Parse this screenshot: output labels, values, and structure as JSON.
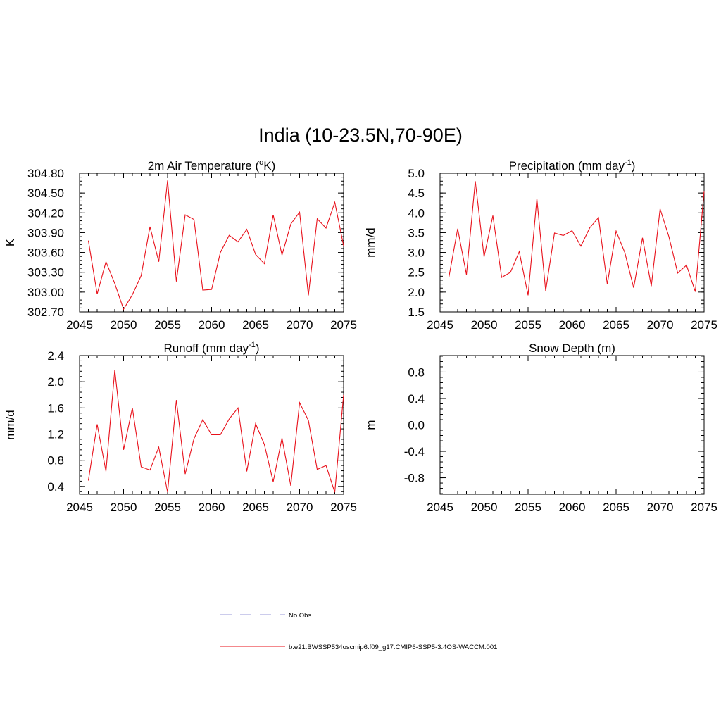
{
  "figure": {
    "title": "India (10-23.5N,70-90E)"
  },
  "chart_data": [
    {
      "type": "line",
      "title": "2m Air Temperature (",
      "title_super": "o",
      "title_after": "K)",
      "ylabel": "K",
      "xlabel": "",
      "xlim": [
        2045,
        2075
      ],
      "ylim": [
        302.7,
        304.8
      ],
      "xticks": [
        "2045",
        "2050",
        "2055",
        "2060",
        "2065",
        "2070",
        "2075"
      ],
      "yticks": [
        "302.70",
        "303.00",
        "303.30",
        "303.60",
        "303.90",
        "304.20",
        "304.50",
        "304.80"
      ],
      "x": [
        2046,
        2047,
        2048,
        2049,
        2050,
        2051,
        2052,
        2053,
        2054,
        2055,
        2056,
        2057,
        2058,
        2059,
        2060,
        2061,
        2062,
        2063,
        2064,
        2065,
        2066,
        2067,
        2068,
        2069,
        2070,
        2071,
        2072,
        2073,
        2074,
        2075
      ],
      "series": [
        {
          "values": [
            303.78,
            302.97,
            303.46,
            303.13,
            302.74,
            302.96,
            303.25,
            303.99,
            303.46,
            304.69,
            303.16,
            304.17,
            304.1,
            303.03,
            303.04,
            303.6,
            303.86,
            303.76,
            303.95,
            303.57,
            303.43,
            304.17,
            303.56,
            304.03,
            304.21,
            302.95,
            304.11,
            303.97,
            304.36,
            303.7
          ],
          "color": "#e8101a"
        }
      ]
    },
    {
      "type": "line",
      "title": "Precipitation (mm day",
      "title_super": "-1",
      "title_after": ")",
      "ylabel": "mm/d",
      "xlabel": "",
      "xlim": [
        2045,
        2075
      ],
      "ylim": [
        1.5,
        5.0
      ],
      "xticks": [
        "2045",
        "2050",
        "2055",
        "2060",
        "2065",
        "2070",
        "2075"
      ],
      "yticks": [
        "1.5",
        "2.0",
        "2.5",
        "3.0",
        "3.5",
        "4.0",
        "4.5",
        "5.0"
      ],
      "x": [
        2046,
        2047,
        2048,
        2049,
        2050,
        2051,
        2052,
        2053,
        2054,
        2055,
        2056,
        2057,
        2058,
        2059,
        2060,
        2061,
        2062,
        2063,
        2064,
        2065,
        2066,
        2067,
        2068,
        2069,
        2070,
        2071,
        2072,
        2073,
        2074,
        2075
      ],
      "series": [
        {
          "values": [
            2.37,
            3.6,
            2.44,
            4.8,
            2.89,
            3.93,
            2.37,
            2.5,
            3.02,
            1.92,
            4.36,
            2.03,
            3.49,
            3.43,
            3.55,
            3.16,
            3.62,
            3.88,
            2.2,
            3.54,
            2.99,
            2.11,
            3.37,
            2.15,
            4.1,
            3.4,
            2.48,
            2.68,
            2.01,
            4.55
          ],
          "color": "#e8101a"
        }
      ]
    },
    {
      "type": "line",
      "title": "Runoff (mm day",
      "title_super": "-1",
      "title_after": ")",
      "ylabel": "mm/d",
      "xlabel": "",
      "xlim": [
        2045,
        2075
      ],
      "ylim": [
        0.28,
        2.4
      ],
      "xticks": [
        "2045",
        "2050",
        "2055",
        "2060",
        "2065",
        "2070",
        "2075"
      ],
      "yticks": [
        "0.4",
        "0.8",
        "1.2",
        "1.6",
        "2.0",
        "2.4"
      ],
      "x": [
        2046,
        2047,
        2048,
        2049,
        2050,
        2051,
        2052,
        2053,
        2054,
        2055,
        2056,
        2057,
        2058,
        2059,
        2060,
        2061,
        2062,
        2063,
        2064,
        2065,
        2066,
        2067,
        2068,
        2069,
        2070,
        2071,
        2072,
        2073,
        2074,
        2075
      ],
      "series": [
        {
          "values": [
            0.49,
            1.35,
            0.63,
            2.18,
            0.96,
            1.6,
            0.7,
            0.65,
            1.0,
            0.31,
            1.72,
            0.59,
            1.13,
            1.42,
            1.19,
            1.19,
            1.43,
            1.6,
            0.63,
            1.36,
            1.04,
            0.47,
            1.14,
            0.41,
            1.68,
            1.41,
            0.66,
            0.72,
            0.31,
            1.8
          ],
          "color": "#e8101a"
        }
      ]
    },
    {
      "type": "line",
      "title": "Snow Depth (m)",
      "title_super": "",
      "title_after": "",
      "ylabel": "m",
      "xlabel": "",
      "xlim": [
        2045,
        2075
      ],
      "ylim": [
        -1.05,
        1.05
      ],
      "xticks": [
        "2045",
        "2050",
        "2055",
        "2060",
        "2065",
        "2070",
        "2075"
      ],
      "yticks": [
        "-0.8",
        "-0.4",
        "0.0",
        "0.4",
        "0.8"
      ],
      "x": [
        2046,
        2047,
        2048,
        2049,
        2050,
        2051,
        2052,
        2053,
        2054,
        2055,
        2056,
        2057,
        2058,
        2059,
        2060,
        2061,
        2062,
        2063,
        2064,
        2065,
        2066,
        2067,
        2068,
        2069,
        2070,
        2071,
        2072,
        2073,
        2074,
        2075
      ],
      "series": [
        {
          "values": [
            0,
            0,
            0,
            0,
            0,
            0,
            0,
            0,
            0,
            0,
            0,
            0,
            0,
            0,
            0,
            0,
            0,
            0,
            0,
            0,
            0,
            0,
            0,
            0,
            0,
            0,
            0,
            0,
            0,
            0
          ],
          "color": "#e8101a"
        }
      ]
    }
  ],
  "legend": {
    "items": [
      {
        "label": "No Obs",
        "color": "#9a9ad8",
        "dashed": true
      },
      {
        "label": "b.e21.BWSSP534oscmip6.f09_g17.CMIP6-SSP5-3.4OS-WACCM.001",
        "color": "#e8101a",
        "dashed": false
      }
    ]
  }
}
